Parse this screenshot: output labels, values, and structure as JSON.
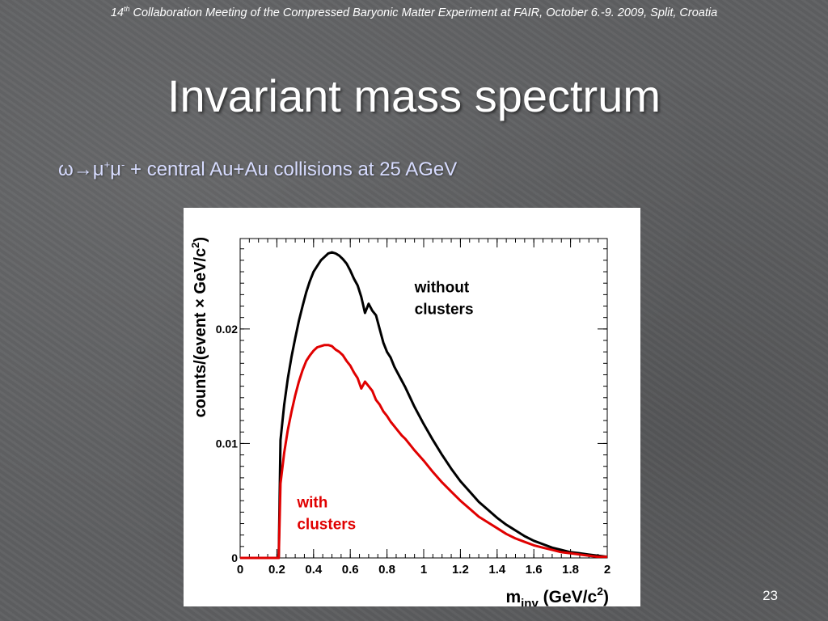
{
  "header": {
    "ordinal_number": "14",
    "ordinal_suffix": "th",
    "text": " Collaboration Meeting of the Compressed Baryonic Matter Experiment at FAIR, October 6.-9. 2009, Split, Croatia"
  },
  "title": "Invariant mass spectrum",
  "subtitle": {
    "prefix": "ω→μ",
    "sup1": "+",
    "mid": "μ",
    "sup2": "-",
    "suffix": " + central Au+Au collisions at 25 AGeV"
  },
  "page_number": "23",
  "chart_data": {
    "type": "line",
    "xlabel": {
      "main": "m",
      "sub": "inv",
      "rest": " (GeV/c",
      "sup": "2",
      "close": ")"
    },
    "ylabel": {
      "main": "counts/(event × GeV/c",
      "sup": "2",
      "close": ")"
    },
    "xlim": [
      0,
      2
    ],
    "ylim": [
      0,
      0.0279
    ],
    "x_ticks": [
      0,
      0.2,
      0.4,
      0.6,
      0.8,
      1,
      1.2,
      1.4,
      1.6,
      1.8,
      2
    ],
    "x_tick_labels": [
      "0",
      "0.2",
      "0.4",
      "0.6",
      "0.8",
      "1",
      "1.2",
      "1.4",
      "1.6",
      "1.8",
      "2"
    ],
    "y_ticks": [
      0,
      0.01,
      0.02
    ],
    "y_tick_labels": [
      "0",
      "0.01",
      "0.02"
    ],
    "grid": false,
    "x": [
      0.0,
      0.21,
      0.22,
      0.24,
      0.26,
      0.28,
      0.3,
      0.32,
      0.34,
      0.36,
      0.38,
      0.4,
      0.42,
      0.44,
      0.46,
      0.48,
      0.5,
      0.52,
      0.54,
      0.56,
      0.58,
      0.6,
      0.62,
      0.64,
      0.66,
      0.68,
      0.7,
      0.72,
      0.74,
      0.76,
      0.78,
      0.8,
      0.82,
      0.84,
      0.86,
      0.88,
      0.9,
      0.95,
      1.0,
      1.05,
      1.1,
      1.15,
      1.2,
      1.25,
      1.3,
      1.35,
      1.4,
      1.45,
      1.5,
      1.55,
      1.6,
      1.65,
      1.7,
      1.75,
      1.8,
      1.85,
      1.9,
      1.95,
      2.0
    ],
    "series": [
      {
        "name": "without clusters",
        "color": "#000000",
        "values": [
          0.0,
          0.0,
          0.0103,
          0.0134,
          0.0157,
          0.0176,
          0.0192,
          0.0207,
          0.022,
          0.0232,
          0.0242,
          0.025,
          0.0255,
          0.026,
          0.0263,
          0.0266,
          0.0267,
          0.0266,
          0.0264,
          0.0261,
          0.0257,
          0.0251,
          0.0244,
          0.0238,
          0.0228,
          0.0214,
          0.0222,
          0.0216,
          0.0212,
          0.02,
          0.0188,
          0.018,
          0.0175,
          0.0167,
          0.0161,
          0.0155,
          0.0149,
          0.0132,
          0.0117,
          0.0103,
          0.009,
          0.0078,
          0.0067,
          0.0058,
          0.0049,
          0.0042,
          0.0035,
          0.0029,
          0.0024,
          0.0019,
          0.0015,
          0.0012,
          0.0009,
          0.0007,
          0.0005,
          0.0004,
          0.0003,
          0.0002,
          0.0001
        ]
      },
      {
        "name": "with clusters",
        "color": "#e00000",
        "values": [
          0.0,
          0.0,
          0.0065,
          0.0092,
          0.0112,
          0.0128,
          0.0142,
          0.0154,
          0.0164,
          0.0172,
          0.0177,
          0.0181,
          0.0184,
          0.0185,
          0.0186,
          0.0186,
          0.0185,
          0.0182,
          0.018,
          0.0177,
          0.0172,
          0.0168,
          0.0162,
          0.0157,
          0.0148,
          0.0154,
          0.015,
          0.0146,
          0.0138,
          0.0134,
          0.0128,
          0.0124,
          0.0119,
          0.0115,
          0.0111,
          0.0107,
          0.0104,
          0.0094,
          0.0085,
          0.0075,
          0.0066,
          0.0058,
          0.005,
          0.0043,
          0.0036,
          0.0031,
          0.0026,
          0.0021,
          0.0017,
          0.0014,
          0.0011,
          0.0009,
          0.0007,
          0.0005,
          0.0004,
          0.0003,
          0.0002,
          0.0001,
          0.0001
        ]
      }
    ],
    "annotations": [
      {
        "series": 0,
        "lines": [
          "without",
          "clusters"
        ]
      },
      {
        "series": 1,
        "lines": [
          "with",
          "clusters"
        ]
      }
    ]
  }
}
